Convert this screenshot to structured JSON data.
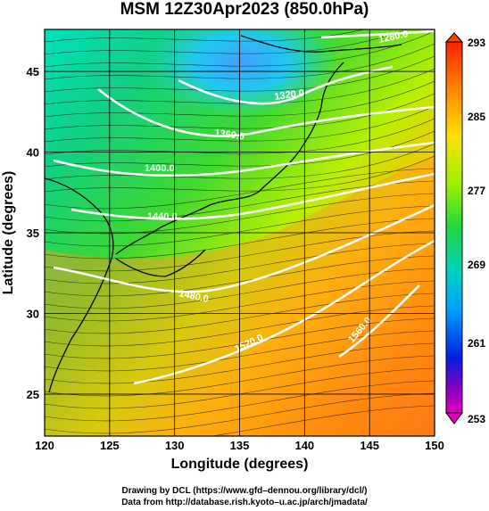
{
  "title": "MSM 12Z30Apr2023 (850.0hPa)",
  "x_axis": {
    "label": "Longitude (degrees)",
    "ticks": [
      "120",
      "125",
      "130",
      "135",
      "140",
      "145",
      "150"
    ],
    "range": [
      120,
      150
    ]
  },
  "y_axis": {
    "label": "Latitude  (degrees)",
    "ticks": [
      "25",
      "30",
      "35",
      "40",
      "45"
    ],
    "range": [
      22.4,
      47.6
    ]
  },
  "colorbar": {
    "ticks": [
      "293",
      "285",
      "277",
      "269",
      "261",
      "253"
    ],
    "range": [
      253,
      293
    ]
  },
  "contours": [
    {
      "label": "1280.0"
    },
    {
      "label": "1320.0"
    },
    {
      "label": "1360.0"
    },
    {
      "label": "1400.0"
    },
    {
      "label": "1440.0"
    },
    {
      "label": "1480.0"
    },
    {
      "label": "1520.0"
    },
    {
      "label": "1560.0"
    }
  ],
  "credits": {
    "line1": "Drawing by DCL (https://www.gfd–dennou.org/library/dcl/)",
    "line2": "Data from http://database.rish.kyoto–u.ac.jp/arch/jmadata/"
  }
}
